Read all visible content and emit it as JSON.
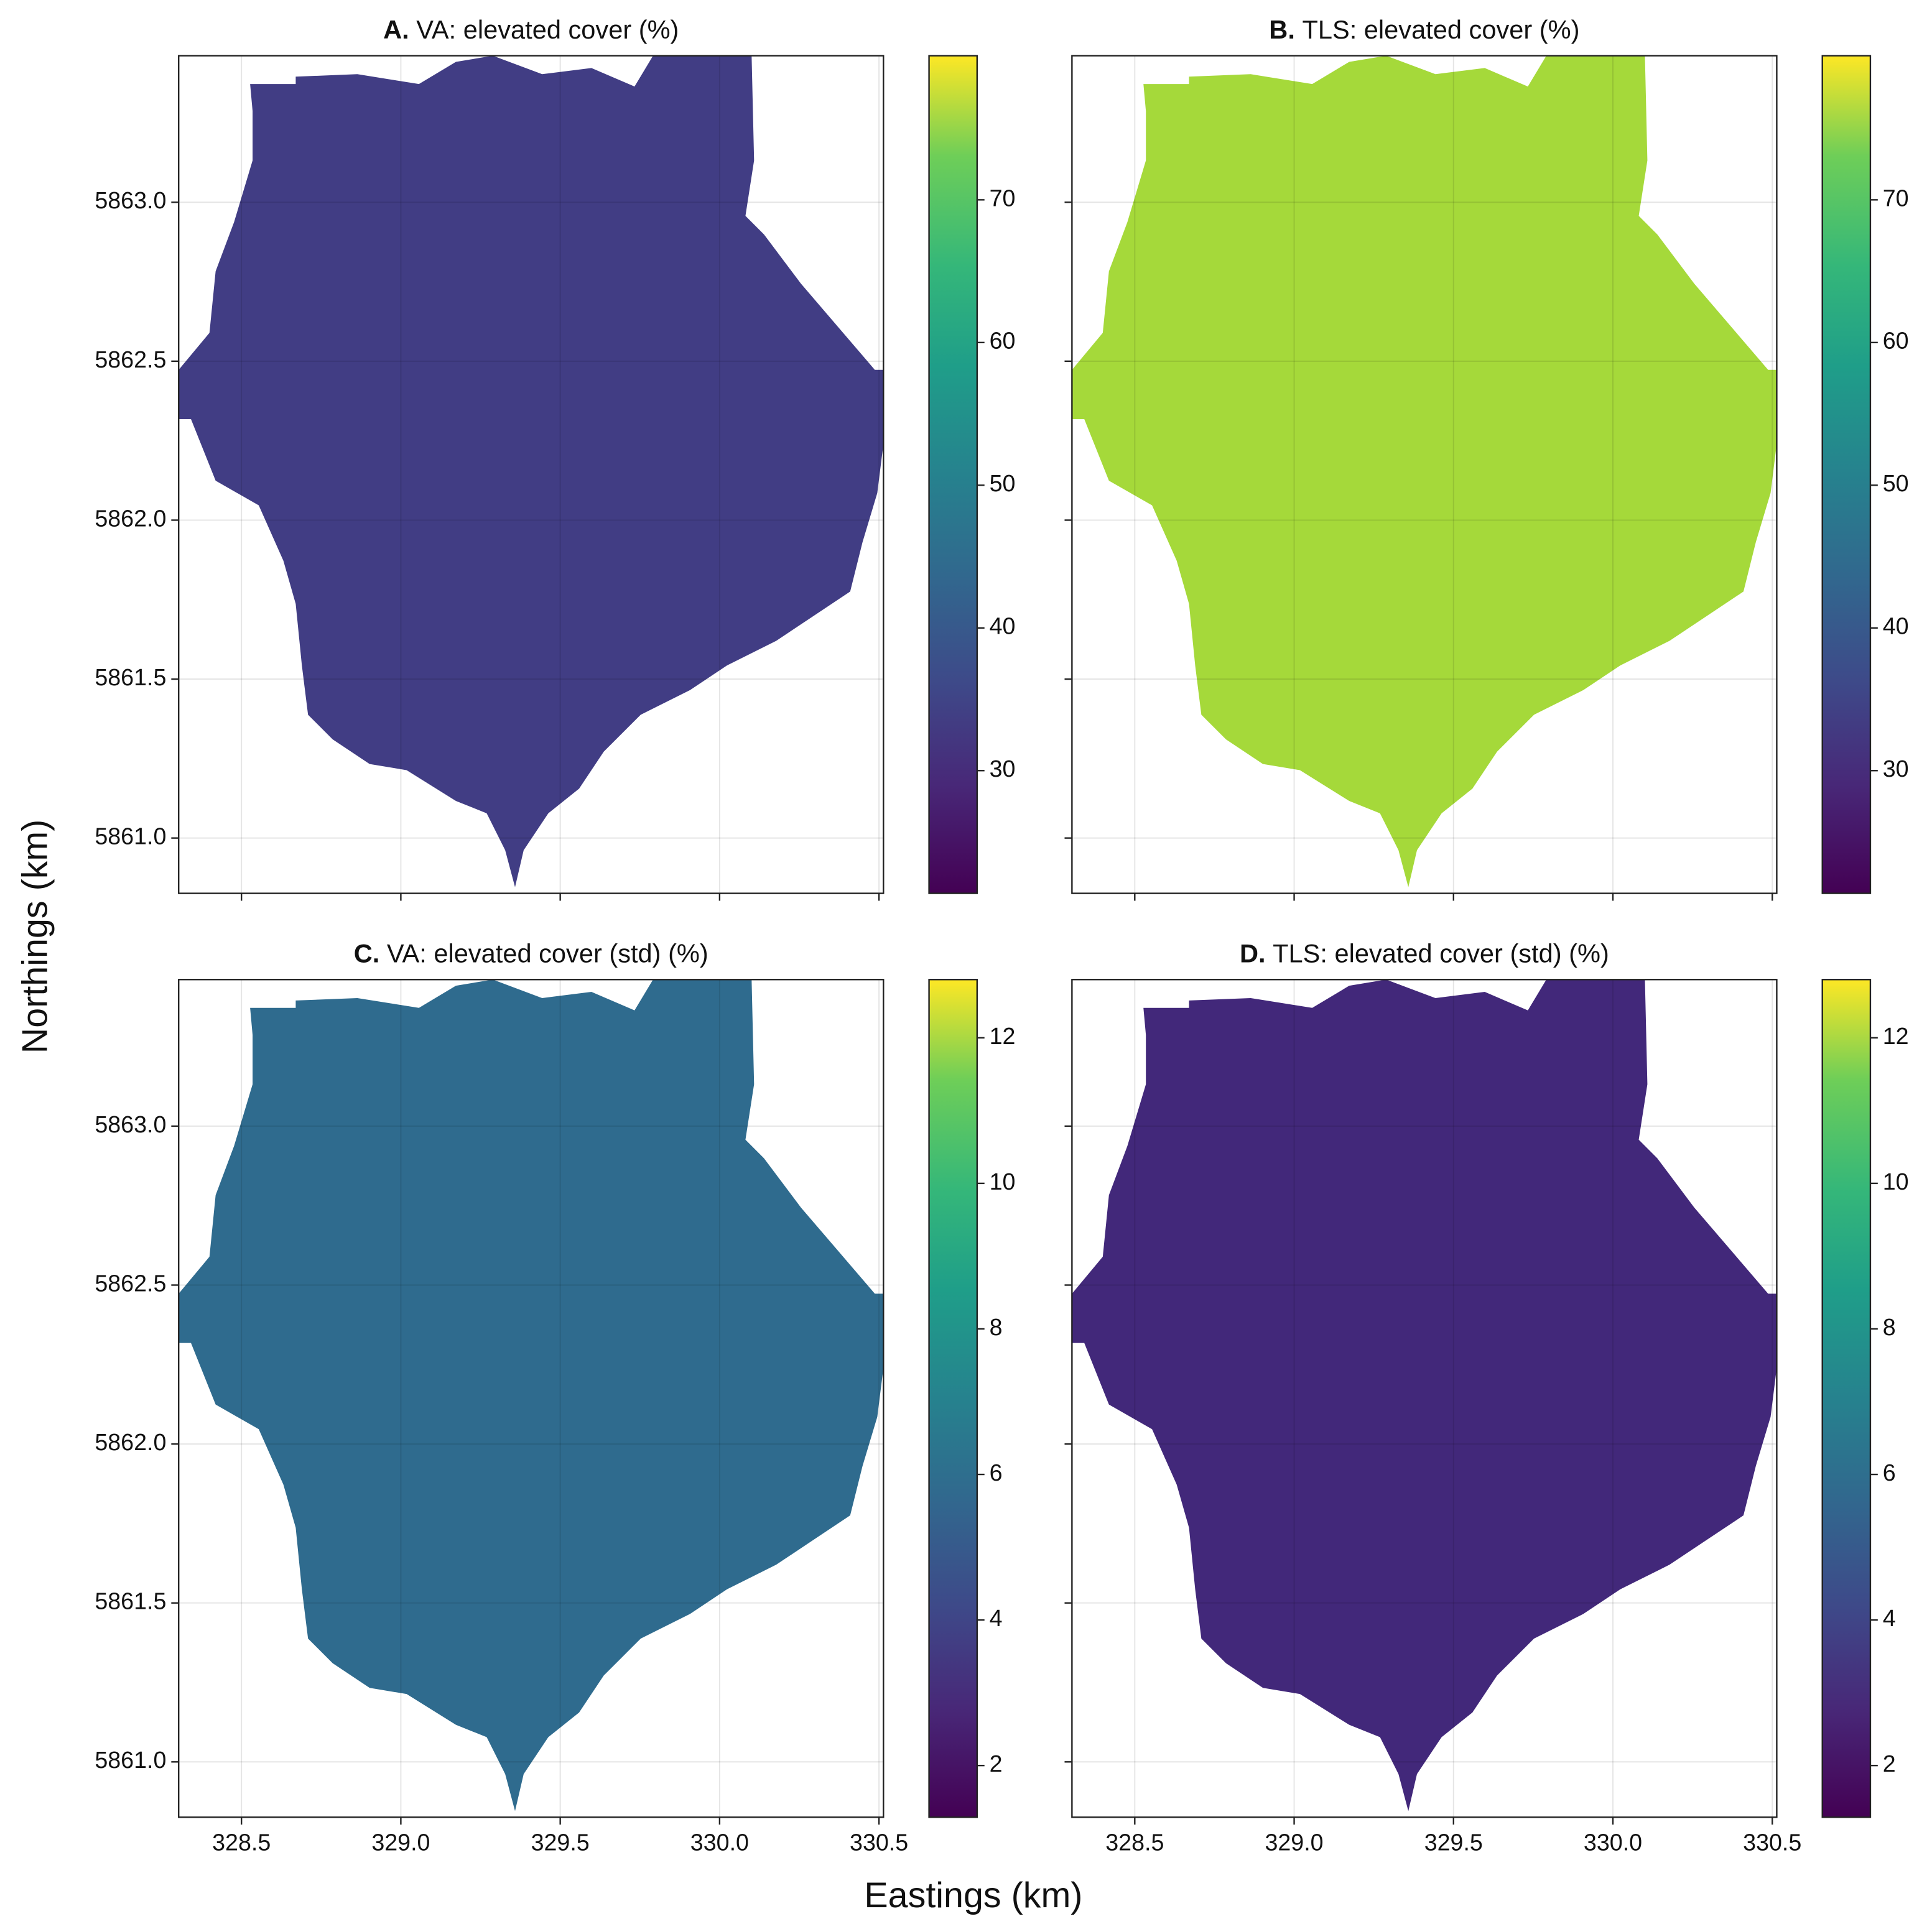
{
  "figure": {
    "xlabel": "Eastings (km)",
    "ylabel": "Northings (km)"
  },
  "chart_data": [
    {
      "type": "raster",
      "panel_label": "A.",
      "title": "VA: elevated cover (%)",
      "cmap": "viridis",
      "fill_color": "#413d84",
      "xlim": [
        328.303,
        330.514
      ],
      "ylim": [
        5860.826,
        5863.461
      ],
      "xticks": [
        328.5,
        329,
        329.5,
        330,
        330.5
      ],
      "yticks": [
        {
          "value": 5861,
          "label": "5861.0"
        },
        {
          "value": 5861.5,
          "label": "5861.5"
        },
        {
          "value": 5862,
          "label": "5862.0"
        },
        {
          "value": 5862.5,
          "label": "5862.5"
        },
        {
          "value": 5863,
          "label": "5863.0"
        }
      ],
      "clim": [
        21.4,
        80.1
      ],
      "cticks": [
        30,
        40,
        50,
        60,
        70
      ],
      "grid": true
    },
    {
      "type": "raster",
      "panel_label": "B.",
      "title": "TLS: elevated cover (%)",
      "cmap": "viridis",
      "fill_color": "#a5d93a",
      "xlim": [
        328.303,
        330.514
      ],
      "ylim": [
        5860.826,
        5863.461
      ],
      "xticks": [
        328.5,
        329,
        329.5,
        330,
        330.5
      ],
      "yticks": [
        5861,
        5861.5,
        5862,
        5862.5,
        5863
      ],
      "clim": [
        21.4,
        80.1
      ],
      "cticks": [
        30,
        40,
        50,
        60,
        70
      ],
      "grid": true
    },
    {
      "type": "raster",
      "panel_label": "C.",
      "title": "VA: elevated cover (std) (%)",
      "cmap": "viridis",
      "fill_color": "#2f6b8e",
      "xlim": [
        328.303,
        330.514
      ],
      "ylim": [
        5860.826,
        5863.461
      ],
      "xticks": [
        {
          "value": 328.5,
          "label": "328.5"
        },
        {
          "value": 329,
          "label": "329.0"
        },
        {
          "value": 329.5,
          "label": "329.5"
        },
        {
          "value": 330,
          "label": "330.0"
        },
        {
          "value": 330.5,
          "label": "330.5"
        }
      ],
      "yticks": [
        {
          "value": 5861,
          "label": "5861.0"
        },
        {
          "value": 5861.5,
          "label": "5861.5"
        },
        {
          "value": 5862,
          "label": "5862.0"
        },
        {
          "value": 5862.5,
          "label": "5862.5"
        },
        {
          "value": 5863,
          "label": "5863.0"
        }
      ],
      "clim": [
        1.29,
        12.8
      ],
      "cticks": [
        2,
        4,
        6,
        8,
        10,
        12
      ],
      "grid": true
    },
    {
      "type": "raster",
      "panel_label": "D.",
      "title": "TLS: elevated cover (std) (%)",
      "cmap": "viridis",
      "fill_color": "#42287a",
      "xlim": [
        328.303,
        330.514
      ],
      "ylim": [
        5860.826,
        5863.461
      ],
      "xticks": [
        {
          "value": 328.5,
          "label": "328.5"
        },
        {
          "value": 329,
          "label": "329.0"
        },
        {
          "value": 329.5,
          "label": "329.5"
        },
        {
          "value": 330,
          "label": "330.0"
        },
        {
          "value": 330.5,
          "label": "330.5"
        }
      ],
      "yticks": [
        5861,
        5861.5,
        5862,
        5862.5,
        5863
      ],
      "clim": [
        1.29,
        12.8
      ],
      "cticks": [
        2,
        4,
        6,
        8,
        10,
        12
      ],
      "grid": true
    }
  ]
}
